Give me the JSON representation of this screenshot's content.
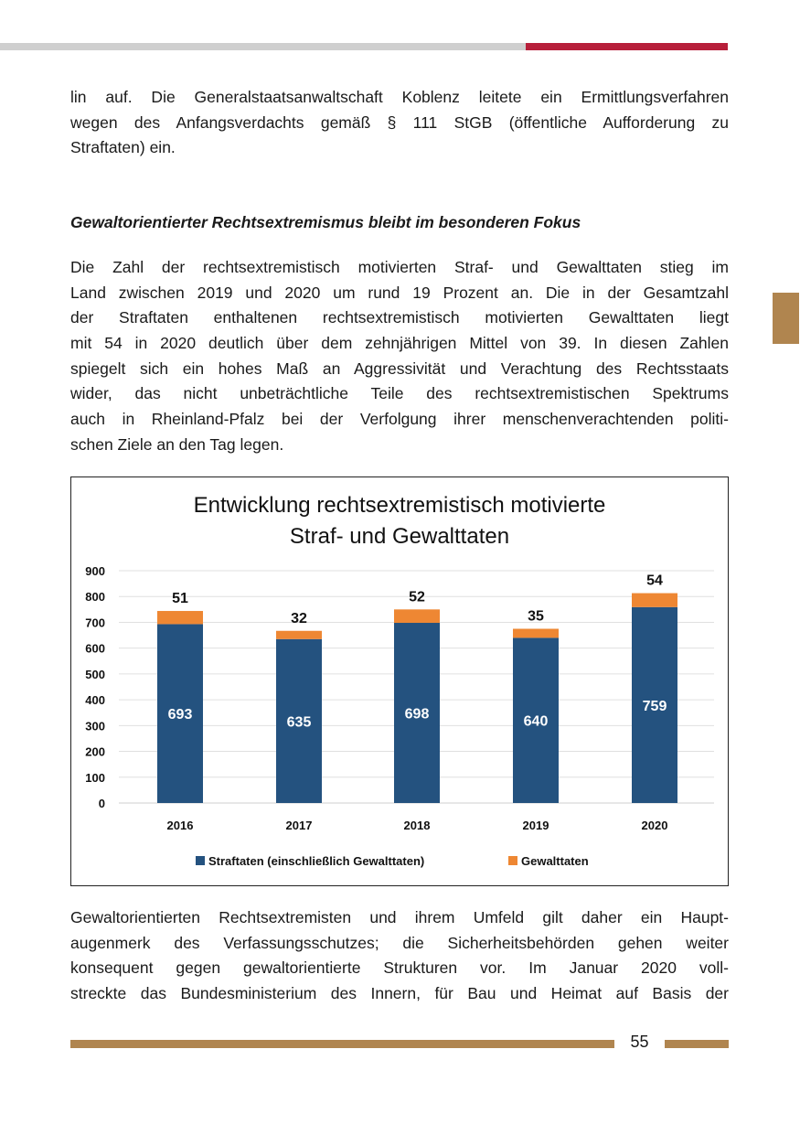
{
  "paragraph_top": [
    "lin auf. Die Generalstaatsanwaltschaft Koblenz leitete ein Ermittlungsverfahren",
    "wegen des Anfangsverdachts gemäß § 111 StGB (öffentliche Aufforderung zu",
    "Straftaten) ein."
  ],
  "heading": "Gewaltorientierter Rechtsextremismus bleibt im besonderen Fokus",
  "paragraph_main": [
    "Die Zahl der rechtsextremistisch motivierten Straf- und Gewalttaten stieg im",
    "Land zwischen 2019 und 2020 um rund 19 Prozent an. Die in der Gesamtzahl",
    "der Straftaten enthaltenen rechtsextremistisch motivierten Gewalttaten liegt",
    "mit 54 in 2020 deutlich über dem zehnjährigen Mittel von 39. In diesen Zahlen",
    "spiegelt sich ein hohes Maß an Aggressivität und Verachtung des Rechtsstaats",
    "wider, das nicht unbeträchtliche Teile des rechtsextremistischen Spektrums",
    "auch in Rheinland-Pfalz bei der Verfolgung ihrer menschenverachtenden politi-",
    "schen Ziele an den Tag legen."
  ],
  "paragraph_bottom": [
    "Gewaltorientierten Rechtsextremisten und ihrem Umfeld gilt daher ein Haupt-",
    "augenmerk des Verfassungsschutzes; die Sicherheitsbehörden gehen weiter",
    "konsequent gegen gewaltorientierte Strukturen vor. Im Januar 2020 voll-",
    "streckte das Bundesministerium des Innern, für Bau und Heimat auf Basis der"
  ],
  "page_number": "55",
  "chart_data": {
    "type": "bar",
    "stacked": true,
    "title": [
      "Entwicklung rechtsextremistisch motivierte",
      "Straf- und Gewalttaten"
    ],
    "categories": [
      "2016",
      "2017",
      "2018",
      "2019",
      "2020"
    ],
    "series": [
      {
        "name": "Straftaten (einschließlich Gewalttaten)",
        "values": [
          693,
          635,
          698,
          640,
          759
        ],
        "color": "#24527f"
      },
      {
        "name": "Gewalttaten",
        "values": [
          51,
          32,
          52,
          35,
          54
        ],
        "color": "#ee8733"
      }
    ],
    "yticks": [
      "0",
      "100",
      "200",
      "300",
      "400",
      "500",
      "600",
      "700",
      "800",
      "900"
    ],
    "ylim": [
      0,
      900
    ],
    "grid": true,
    "legend": "bottom"
  }
}
